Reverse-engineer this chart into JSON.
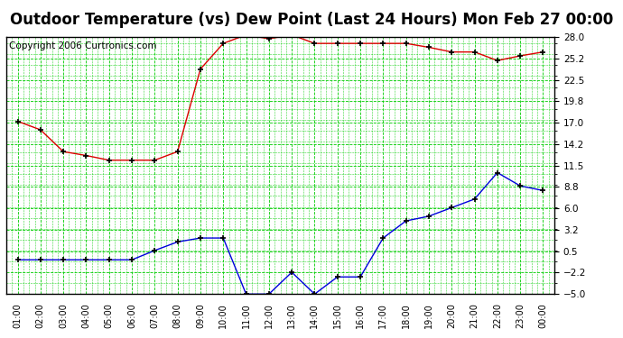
{
  "title": "Outdoor Temperature (vs) Dew Point (Last 24 Hours) Mon Feb 27 00:00",
  "copyright": "Copyright 2006 Curtronics.com",
  "x_labels": [
    "01:00",
    "02:00",
    "03:00",
    "04:00",
    "05:00",
    "06:00",
    "07:00",
    "08:00",
    "09:00",
    "10:00",
    "11:00",
    "12:00",
    "13:00",
    "14:00",
    "15:00",
    "16:00",
    "17:00",
    "18:00",
    "19:00",
    "20:00",
    "21:00",
    "22:00",
    "23:00",
    "00:00"
  ],
  "y_ticks": [
    28.0,
    25.2,
    22.5,
    19.8,
    17.0,
    14.2,
    11.5,
    8.8,
    6.0,
    3.2,
    0.5,
    -2.2,
    -5.0
  ],
  "y_min": -5.0,
  "y_max": 28.0,
  "temp_data": [
    17.2,
    16.1,
    13.3,
    12.8,
    12.2,
    12.2,
    12.2,
    13.3,
    23.9,
    27.2,
    28.3,
    27.8,
    28.3,
    27.2,
    27.2,
    27.2,
    27.2,
    27.2,
    26.7,
    26.1,
    26.1,
    25.0,
    25.6,
    26.1
  ],
  "dew_data": [
    -0.6,
    -0.6,
    -0.6,
    -0.6,
    -0.6,
    -0.6,
    0.6,
    1.7,
    2.2,
    2.2,
    -5.0,
    -5.0,
    -2.2,
    -5.0,
    -2.8,
    -2.8,
    2.2,
    4.4,
    5.0,
    6.1,
    7.2,
    10.6,
    8.9,
    8.3
  ],
  "temp_color": "#dd0000",
  "dew_color": "#0000dd",
  "bg_color": "#ffffff",
  "plot_bg": "#ffffff",
  "grid_color": "#00cc00",
  "title_fontsize": 12,
  "copyright_fontsize": 7.5
}
